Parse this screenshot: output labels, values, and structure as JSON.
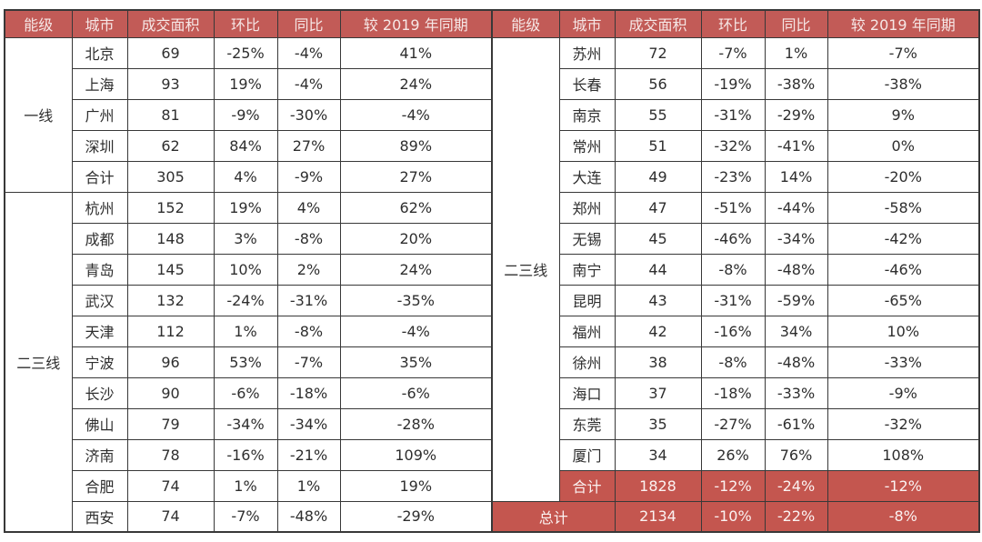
{
  "colors": {
    "page_bg": "#ffffff",
    "header_bg": "#c25b57",
    "header_text": "#f6e7e6",
    "summary_bg": "#c4564f",
    "summary_text": "#fbf3f2",
    "border": "#383838",
    "body_text": "#2e2e2e"
  },
  "chart_data": {
    "type": "table",
    "columns": [
      "能级",
      "城市",
      "成交面积",
      "环比",
      "同比",
      "较 2019 年同期"
    ],
    "panes": [
      {
        "groups": [
          {
            "tier": "一线",
            "rows": [
              [
                "北京",
                "69",
                "-25%",
                "-4%",
                "41%"
              ],
              [
                "上海",
                "93",
                "19%",
                "-4%",
                "24%"
              ],
              [
                "广州",
                "81",
                "-9%",
                "-30%",
                "-4%"
              ],
              [
                "深圳",
                "62",
                "84%",
                "27%",
                "89%"
              ],
              [
                "合计",
                "305",
                "4%",
                "-9%",
                "27%"
              ]
            ]
          },
          {
            "tier": "二三线",
            "rows": [
              [
                "杭州",
                "152",
                "19%",
                "4%",
                "62%"
              ],
              [
                "成都",
                "148",
                "3%",
                "-8%",
                "20%"
              ],
              [
                "青岛",
                "145",
                "10%",
                "2%",
                "24%"
              ],
              [
                "武汉",
                "132",
                "-24%",
                "-31%",
                "-35%"
              ],
              [
                "天津",
                "112",
                "1%",
                "-8%",
                "-4%"
              ],
              [
                "宁波",
                "96",
                "53%",
                "-7%",
                "35%"
              ],
              [
                "长沙",
                "90",
                "-6%",
                "-18%",
                "-6%"
              ],
              [
                "佛山",
                "79",
                "-34%",
                "-34%",
                "-28%"
              ],
              [
                "济南",
                "78",
                "-16%",
                "-21%",
                "109%"
              ],
              [
                "合肥",
                "74",
                "1%",
                "1%",
                "19%"
              ],
              [
                "西安",
                "74",
                "-7%",
                "-48%",
                "-29%"
              ]
            ]
          }
        ]
      },
      {
        "tier": "二三线",
        "city_rows": [
          [
            "苏州",
            "72",
            "-7%",
            "1%",
            "-7%"
          ],
          [
            "长春",
            "56",
            "-19%",
            "-38%",
            "-38%"
          ],
          [
            "南京",
            "55",
            "-31%",
            "-29%",
            "9%"
          ],
          [
            "常州",
            "51",
            "-32%",
            "-41%",
            "0%"
          ],
          [
            "大连",
            "49",
            "-23%",
            "14%",
            "-20%"
          ],
          [
            "郑州",
            "47",
            "-51%",
            "-44%",
            "-58%"
          ],
          [
            "无锡",
            "45",
            "-46%",
            "-34%",
            "-42%"
          ],
          [
            "南宁",
            "44",
            "-8%",
            "-48%",
            "-46%"
          ],
          [
            "昆明",
            "43",
            "-31%",
            "-59%",
            "-65%"
          ],
          [
            "福州",
            "42",
            "-16%",
            "34%",
            "10%"
          ],
          [
            "徐州",
            "38",
            "-8%",
            "-48%",
            "-33%"
          ],
          [
            "海口",
            "37",
            "-18%",
            "-33%",
            "-9%"
          ],
          [
            "东莞",
            "35",
            "-27%",
            "-61%",
            "-32%"
          ],
          [
            "厦门",
            "34",
            "26%",
            "76%",
            "108%"
          ]
        ],
        "subtotal_row": [
          "合计",
          "1828",
          "-12%",
          "-24%",
          "-12%"
        ],
        "grand_total_row": [
          "总计",
          "2134",
          "-10%",
          "-22%",
          "-8%"
        ]
      }
    ]
  }
}
